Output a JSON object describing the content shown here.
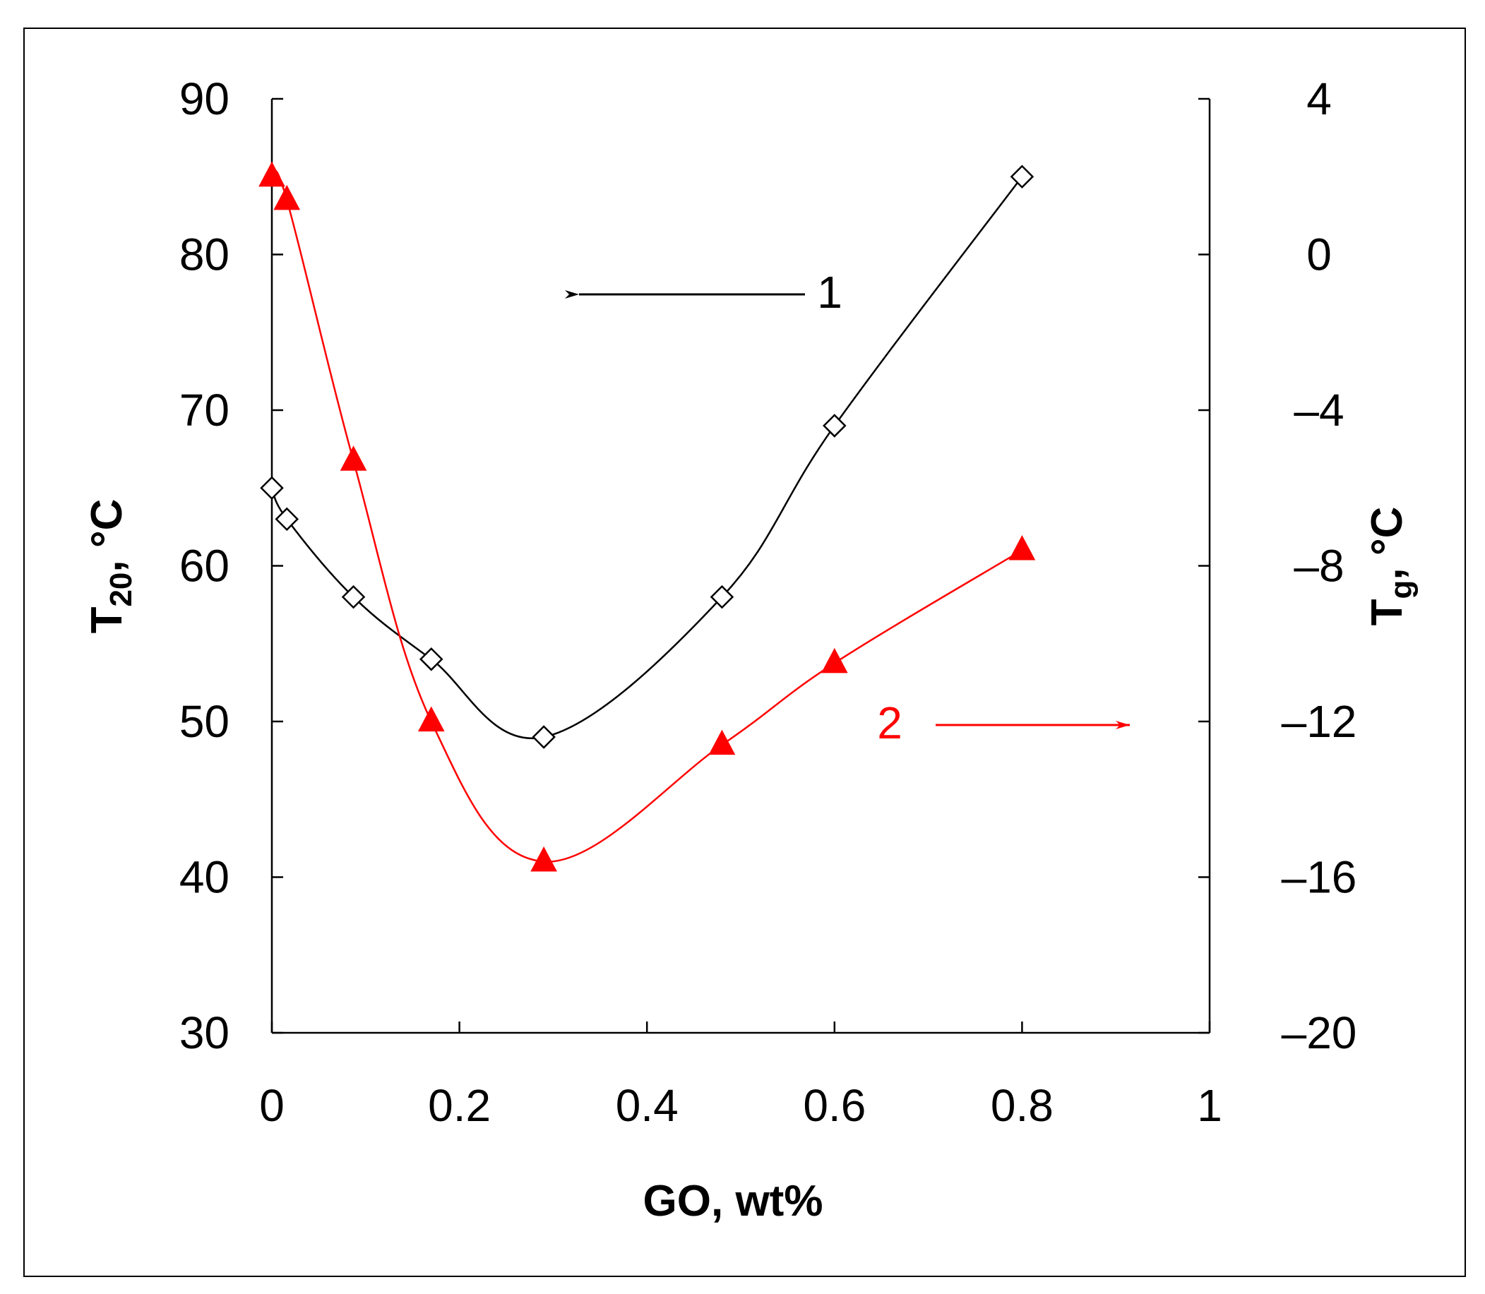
{
  "chart_data": {
    "type": "line",
    "title": "",
    "xlabel": "GO, wt%",
    "ylabel_left": {
      "main": "T",
      "sub": "20",
      "unit": ", °C"
    },
    "ylabel_right": {
      "main": "T",
      "sub": "g",
      "unit": ", °C"
    },
    "xlim": [
      0,
      1
    ],
    "ylim_left": [
      30,
      90
    ],
    "ylim_right": [
      -20,
      4
    ],
    "x_ticks": [
      0,
      0.2,
      0.4,
      0.6,
      0.8,
      1
    ],
    "x_tick_labels": [
      "0",
      "0.2",
      "0.4",
      "0.6",
      "0.8",
      "1"
    ],
    "y_left_ticks": [
      30,
      40,
      50,
      60,
      70,
      80,
      90
    ],
    "y_left_tick_labels": [
      "30",
      "40",
      "50",
      "60",
      "70",
      "80",
      "90"
    ],
    "y_right_ticks": [
      -20,
      -16,
      -12,
      -8,
      -4,
      0,
      4
    ],
    "y_right_tick_labels": [
      "–20",
      "–16",
      "–12",
      "–8",
      "–4",
      "0",
      "4"
    ],
    "grid": false,
    "series": [
      {
        "name": "1",
        "axis": "left",
        "color": "#000000",
        "marker": "open-diamond",
        "x": [
          0,
          0.016,
          0.087,
          0.17,
          0.29,
          0.48,
          0.6,
          0.8
        ],
        "y": [
          65,
          63,
          58,
          54,
          49,
          58,
          69,
          85
        ]
      },
      {
        "name": "2",
        "axis": "right",
        "color": "#ff0000",
        "marker": "filled-triangle",
        "x": [
          0,
          0.016,
          0.087,
          0.17,
          0.29,
          0.48,
          0.6,
          0.8
        ],
        "y": [
          2.0,
          1.4,
          -5.3,
          -12.0,
          -15.6,
          -12.6,
          -10.5,
          -7.6
        ]
      }
    ],
    "annotations": [
      {
        "label": "1",
        "series": "1",
        "arrow_direction": "left",
        "color": "#000000"
      },
      {
        "label": "2",
        "series": "2",
        "arrow_direction": "right",
        "color": "#ff0000"
      }
    ]
  }
}
